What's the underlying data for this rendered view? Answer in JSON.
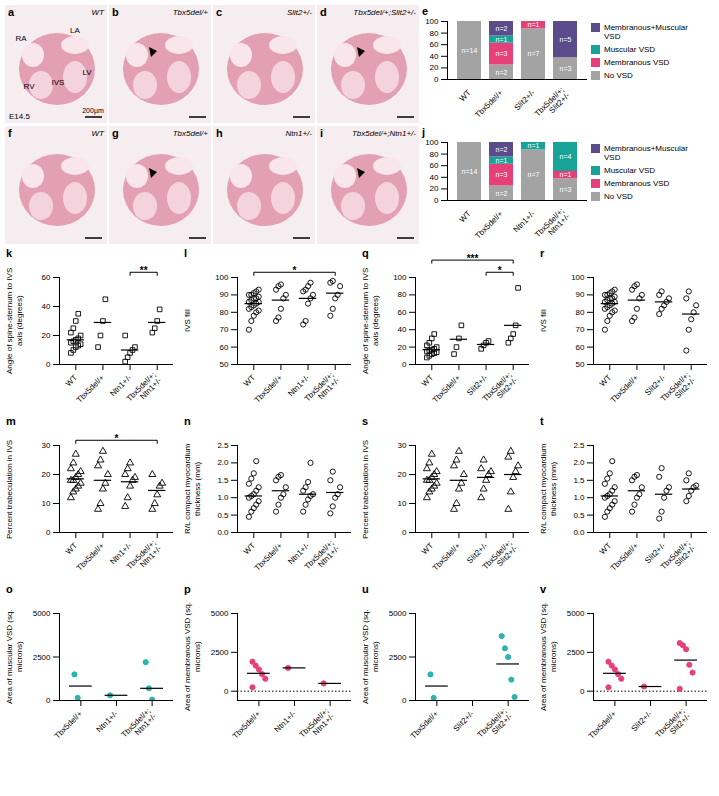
{
  "panels": [
    {
      "letter": "a",
      "genotype": "WT",
      "labels": [
        "LA",
        "RA",
        "LV",
        "RV",
        "IVS"
      ],
      "stage": "E14.5",
      "scale_bar": "200µm",
      "arrowhead": false
    },
    {
      "letter": "b",
      "genotype": "Tbx5del/+",
      "arrowhead": true
    },
    {
      "letter": "c",
      "genotype": "Slit2+/-",
      "arrowhead": false
    },
    {
      "letter": "d",
      "genotype": "Tbx5del/+;Slit2+/-",
      "arrowhead": true
    },
    {
      "letter": "f",
      "genotype": "WT",
      "arrowhead": false
    },
    {
      "letter": "g",
      "genotype": "Tbx5del/+",
      "arrowhead": true
    },
    {
      "letter": "h",
      "genotype": "Ntn1+/-",
      "arrowhead": false
    },
    {
      "letter": "i",
      "genotype": "Tbx5del/+;Ntn1+/-",
      "arrowhead": true
    }
  ],
  "chart_data": [
    {
      "panel": "e",
      "type": "bar",
      "stacked": true,
      "legend": "right",
      "categories": [
        "WT",
        "Tbx5del/+",
        "Slit2+/-",
        "Tbx5del/+;Slit2+/-"
      ],
      "ylim": [
        0,
        100
      ],
      "yticks": [
        0,
        20,
        40,
        60,
        80,
        100
      ],
      "series": [
        {
          "name": "No VSD",
          "color": "#a3a3a3",
          "values": [
            100,
            25,
            87.5,
            37.5
          ],
          "annotations": [
            "n=14",
            "n=2",
            "n=7",
            "n=3"
          ]
        },
        {
          "name": "Membranous VSD",
          "color": "#e6407a",
          "values": [
            0,
            37.5,
            12.5,
            0
          ],
          "annotations": [
            null,
            "n=3",
            "n=1",
            null
          ]
        },
        {
          "name": "Muscular VSD",
          "color": "#17a398",
          "values": [
            0,
            12.5,
            0,
            0
          ],
          "annotations": [
            null,
            "n=1",
            null,
            null
          ]
        },
        {
          "name": "Membranous+Muscular VSD",
          "color": "#5b4b8a",
          "values": [
            0,
            25,
            0,
            62.5
          ],
          "annotations": [
            null,
            "n=2",
            null,
            "n=5"
          ]
        }
      ]
    },
    {
      "panel": "j",
      "type": "bar",
      "stacked": true,
      "legend": "right",
      "categories": [
        "WT",
        "Tbx5del/+",
        "Ntn1+/-",
        "Tbx5del/+;Ntn1+/-"
      ],
      "ylim": [
        0,
        100
      ],
      "yticks": [
        0,
        20,
        40,
        60,
        80,
        100
      ],
      "series": [
        {
          "name": "No VSD",
          "color": "#a3a3a3",
          "values": [
            100,
            25,
            87.5,
            37.5
          ],
          "annotations": [
            "n=14",
            "n=2",
            "n=7",
            "n=3"
          ]
        },
        {
          "name": "Membranous VSD",
          "color": "#e6407a",
          "values": [
            0,
            37.5,
            0,
            12.5
          ],
          "annotations": [
            null,
            "n=3",
            null,
            "n=1"
          ]
        },
        {
          "name": "Muscular VSD",
          "color": "#17a398",
          "values": [
            0,
            12.5,
            12.5,
            50
          ],
          "annotations": [
            null,
            "n=1",
            "n=1",
            "n=4"
          ]
        },
        {
          "name": "Membranous+Muscular VSD",
          "color": "#5b4b8a",
          "values": [
            0,
            25,
            0,
            0
          ],
          "annotations": [
            null,
            "n=2",
            null,
            null
          ]
        }
      ]
    },
    {
      "panel": "k",
      "type": "scatter",
      "marker": "square-open",
      "color": "#000000",
      "ylabel": "Angle of spine-sternum to IVS axis (degrees)",
      "categories": [
        "WT",
        "Tbx5del/+",
        "Ntn1+/-",
        "Tbx5del/+;Ntn1+/-"
      ],
      "ylim": [
        0,
        60
      ],
      "yticks": [
        0,
        20,
        40,
        60
      ],
      "points": [
        [
          8,
          10,
          12,
          13,
          14,
          15,
          16,
          17,
          18,
          20,
          22,
          25,
          30,
          35
        ],
        [
          12,
          20,
          30,
          45
        ],
        [
          2,
          5,
          8,
          10,
          12,
          20
        ],
        [
          22,
          25,
          30,
          38
        ]
      ],
      "means": [
        17,
        29,
        10,
        29
      ],
      "significance": [
        {
          "from": "Ntn1+/-",
          "to": "Tbx5del/+;Ntn1+/-",
          "label": "**"
        }
      ]
    },
    {
      "panel": "l",
      "type": "scatter",
      "marker": "circle-open",
      "color": "#000000",
      "ylabel": "IVS fill",
      "categories": [
        "WT",
        "Tbx5del/+",
        "Ntn1+/-",
        "Tbx5del/+;Ntn1+/-"
      ],
      "ylim": [
        50,
        100
      ],
      "yticks": [
        50,
        60,
        70,
        80,
        90,
        100
      ],
      "points": [
        [
          70,
          75,
          78,
          80,
          81,
          82,
          83,
          84,
          85,
          86,
          86,
          87,
          88,
          88,
          89,
          90,
          90,
          91,
          92,
          93
        ],
        [
          75,
          77,
          82,
          88,
          90,
          93,
          95,
          96
        ],
        [
          73,
          75,
          85,
          88,
          90,
          92,
          93,
          95,
          97
        ],
        [
          78,
          82,
          88,
          90,
          95,
          97,
          98
        ]
      ],
      "means": [
        85,
        87,
        88,
        91
      ],
      "significance": [
        {
          "from": "WT",
          "to": "Tbx5del/+;Ntn1+/-",
          "label": "*"
        }
      ]
    },
    {
      "panel": "q",
      "type": "scatter",
      "marker": "square-open",
      "color": "#000000",
      "ylabel": "Angle of spine-sternum to IVS axis (degrees)",
      "categories": [
        "WT",
        "Tbx5del/+",
        "Slit2+/-",
        "Tbx5del/+;Slit2+/-"
      ],
      "ylim": [
        0,
        100
      ],
      "yticks": [
        0,
        20,
        40,
        60,
        80,
        100
      ],
      "points": [
        [
          8,
          10,
          12,
          13,
          14,
          15,
          16,
          17,
          18,
          20,
          22,
          25,
          30,
          35
        ],
        [
          12,
          20,
          30,
          45
        ],
        [
          18,
          22,
          25,
          27
        ],
        [
          25,
          30,
          35,
          45,
          88
        ]
      ],
      "means": [
        17,
        29,
        23,
        45
      ],
      "significance": [
        {
          "from": "Slit2+/-",
          "to": "Tbx5del/+;Slit2+/-",
          "label": "*"
        },
        {
          "from": "WT",
          "to": "Tbx5del/+;Slit2+/-",
          "label": "***"
        }
      ]
    },
    {
      "panel": "r",
      "type": "scatter",
      "marker": "circle-open",
      "color": "#000000",
      "ylabel": "IVS fill",
      "categories": [
        "WT",
        "Tbx5del/+",
        "Slit2+/-",
        "Tbx5del/+;Slit2+/-"
      ],
      "ylim": [
        50,
        100
      ],
      "yticks": [
        50,
        60,
        70,
        80,
        90,
        100
      ],
      "points": [
        [
          70,
          75,
          78,
          80,
          81,
          82,
          83,
          84,
          85,
          86,
          86,
          87,
          88,
          88,
          89,
          90,
          90,
          91,
          92,
          93
        ],
        [
          75,
          77,
          82,
          88,
          90,
          93,
          95,
          96
        ],
        [
          79,
          82,
          84,
          86,
          88,
          90,
          92
        ],
        [
          58,
          70,
          76,
          80,
          84,
          88,
          92
        ]
      ],
      "means": [
        85,
        87,
        86,
        79
      ]
    },
    {
      "panel": "m",
      "type": "scatter",
      "marker": "triangle-open",
      "color": "#000000",
      "ylabel": "Percent trabeculation in IVS",
      "categories": [
        "WT",
        "Tbx5del/+",
        "Ntn1+/-",
        "Tbx5del/+;Ntn1+/-"
      ],
      "ylim": [
        0,
        30
      ],
      "yticks": [
        0,
        10,
        20,
        30
      ],
      "points": [
        [
          12,
          14,
          15,
          16,
          17,
          18,
          18,
          19,
          20,
          21,
          22,
          24,
          27
        ],
        [
          8,
          10,
          15,
          17,
          20,
          23,
          25,
          28
        ],
        [
          9,
          12,
          16,
          18,
          19,
          20,
          22,
          24
        ],
        [
          8,
          10,
          13,
          16,
          17,
          20
        ]
      ],
      "means": [
        18.5,
        18,
        17.5,
        14.5
      ],
      "significance": [
        {
          "from": "WT",
          "to": "Tbx5del/+;Ntn1+/-",
          "label": "*"
        }
      ]
    },
    {
      "panel": "n",
      "type": "scatter",
      "marker": "circle-open",
      "color": "#000000",
      "ylabel": "R/L compact myocardium thickness (mm)",
      "categories": [
        "WT",
        "Tbx5del/+",
        "Ntn1+/-",
        "Tbx5del/+;Ntn1+/-"
      ],
      "ylim": [
        0,
        2.5
      ],
      "yticks": [
        {
          "value": 0,
          "label": "0.0"
        },
        0.5,
        {
          "value": 1,
          "label": "1.0"
        },
        1.5,
        {
          "value": 2,
          "label": "2.0"
        },
        2.5
      ],
      "points": [
        [
          0.45,
          0.6,
          0.7,
          0.8,
          0.9,
          1.0,
          1.05,
          1.1,
          1.2,
          1.3,
          1.4,
          1.55,
          1.7,
          2.05
        ],
        [
          0.6,
          0.8,
          1.0,
          1.1,
          1.3,
          1.5,
          1.6,
          1.65
        ],
        [
          0.6,
          0.8,
          0.95,
          1.05,
          1.1,
          1.2,
          1.3,
          1.45,
          2.0
        ],
        [
          0.55,
          0.75,
          1.0,
          1.1,
          1.3,
          1.5,
          1.75
        ]
      ],
      "means": [
        1.05,
        1.2,
        1.1,
        1.15
      ]
    },
    {
      "panel": "s",
      "type": "scatter",
      "marker": "triangle-open",
      "color": "#000000",
      "ylabel": "Percent trabeculation in IVS",
      "categories": [
        "WT",
        "Tbx5del/+",
        "Slit2+/-",
        "Tbx5del/+;Slit2+/-"
      ],
      "ylim": [
        0,
        30
      ],
      "yticks": [
        0,
        10,
        20,
        30
      ],
      "points": [
        [
          12,
          14,
          15,
          16,
          17,
          18,
          18,
          19,
          20,
          21,
          22,
          24,
          27
        ],
        [
          8,
          10,
          15,
          17,
          20,
          23,
          25,
          28
        ],
        [
          12,
          15,
          18,
          20,
          21,
          22,
          25
        ],
        [
          8,
          14,
          19,
          21,
          23,
          26,
          28
        ]
      ],
      "means": [
        18.5,
        18,
        19,
        20
      ]
    },
    {
      "panel": "t",
      "type": "scatter",
      "marker": "circle-open",
      "color": "#000000",
      "ylabel": "R/L compact myocardium thickness (mm)",
      "categories": [
        "WT",
        "Tbx5del/+",
        "Slit2+/-",
        "Tbx5del/+;Slit2+/-"
      ],
      "ylim": [
        0,
        2.5
      ],
      "yticks": [
        {
          "value": 0,
          "label": "0.0"
        },
        0.5,
        {
          "value": 1,
          "label": "1.0"
        },
        1.5,
        {
          "value": 2,
          "label": "2.0"
        },
        2.5
      ],
      "points": [
        [
          0.45,
          0.6,
          0.7,
          0.8,
          0.9,
          1.0,
          1.05,
          1.1,
          1.2,
          1.3,
          1.4,
          1.55,
          1.7,
          2.05
        ],
        [
          0.6,
          0.8,
          1.0,
          1.1,
          1.3,
          1.5,
          1.6,
          1.65
        ],
        [
          0.4,
          0.6,
          1.0,
          1.2,
          1.3,
          1.6,
          1.85
        ],
        [
          0.9,
          1.05,
          1.2,
          1.3,
          1.35,
          1.5,
          1.7
        ]
      ],
      "means": [
        1.05,
        1.2,
        1.1,
        1.25
      ]
    },
    {
      "panel": "o",
      "type": "scatter",
      "marker": "circle",
      "color": "#2bb3b0",
      "ylabel": "Area of muscular VSD (sq. microns)",
      "categories": [
        "Tbx5del/+",
        "Ntn1+/-",
        "Tbx5del/+;Ntn1+/-"
      ],
      "ylim": [
        0,
        5000
      ],
      "yticks": [
        0,
        2500,
        5000
      ],
      "points": [
        [
          1500,
          150
        ],
        [
          300
        ],
        [
          2200,
          700,
          50
        ]
      ],
      "means": [
        830,
        300,
        700
      ]
    },
    {
      "panel": "p",
      "type": "scatter",
      "marker": "circle",
      "color": "#e6407a",
      "ylabel": "Area of membranous VSD (sq. microns)",
      "categories": [
        "Tbx5del/+",
        "Ntn1+/-",
        "Tbx5del/+;Ntn1+/-"
      ],
      "ylim": [
        -600,
        5000
      ],
      "yticks": [
        0,
        2500,
        5000
      ],
      "reference_line": {
        "value": 0,
        "line_style": "dotted"
      },
      "points": [
        [
          1900,
          1650,
          1400,
          1100,
          800,
          250
        ],
        [
          1500
        ],
        [
          500
        ]
      ],
      "means": [
        1150,
        1500,
        500
      ]
    },
    {
      "panel": "u",
      "type": "scatter",
      "marker": "circle",
      "color": "#2bb3b0",
      "ylabel": "Area of muscular VSD (sq. microns)",
      "categories": [
        "Tbx5del/+",
        "Slit2+/-",
        "Tbx5del/+;Slit2+/-"
      ],
      "ylim": [
        0,
        5000
      ],
      "yticks": [
        0,
        2500,
        5000
      ],
      "points": [
        [
          1500,
          150
        ],
        [],
        [
          3700,
          3000,
          2500,
          1200,
          200
        ]
      ],
      "means": [
        830,
        null,
        2100
      ]
    },
    {
      "panel": "v",
      "type": "scatter",
      "marker": "circle",
      "color": "#e6407a",
      "ylabel": "Area of membranous VSD (sq. microns)",
      "categories": [
        "Tbx5del/+",
        "Slit2+/-",
        "Tbx5del/+;Slit2+/-"
      ],
      "ylim": [
        -600,
        5000
      ],
      "yticks": [
        0,
        2500,
        5000
      ],
      "reference_line": {
        "value": 0,
        "line_style": "dotted"
      },
      "points": [
        [
          1900,
          1650,
          1400,
          1100,
          800,
          250
        ],
        [
          300
        ],
        [
          3100,
          2950,
          2700,
          1700,
          1200,
          150
        ]
      ],
      "means": [
        1150,
        300,
        2000
      ]
    }
  ]
}
